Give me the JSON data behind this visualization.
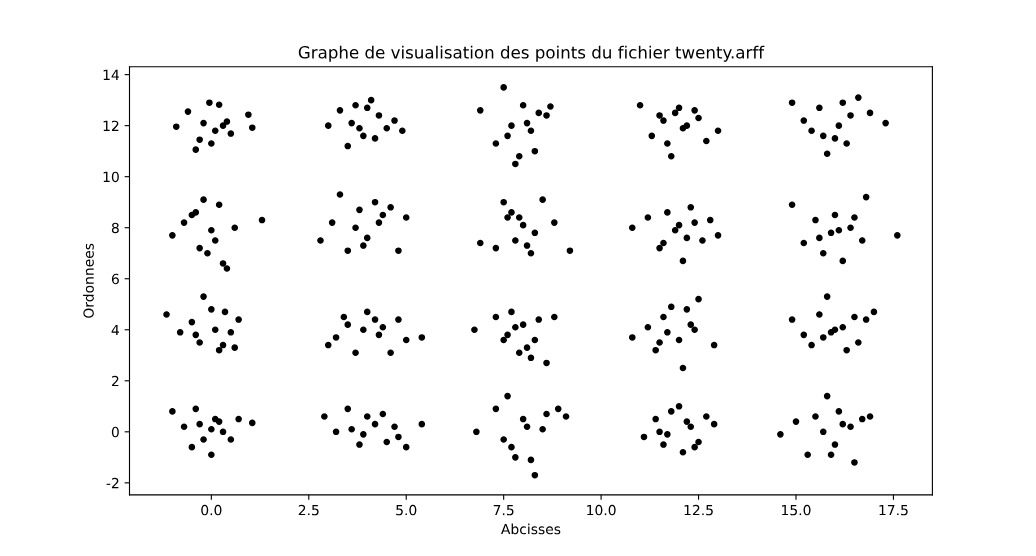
{
  "chart_data": {
    "type": "scatter",
    "title": "Graphe de visualisation des points du fichier twenty.arff",
    "xlabel": "Abcisses",
    "ylabel": "Ordonnees",
    "xlim": [
      -2.1,
      18.5
    ],
    "ylim": [
      -2.47,
      14.31
    ],
    "xticks": [
      {
        "value": 0,
        "label": "0.0"
      },
      {
        "value": 2.5,
        "label": "2.5"
      },
      {
        "value": 5,
        "label": "5.0"
      },
      {
        "value": 7.5,
        "label": "7.5"
      },
      {
        "value": 10,
        "label": "10.0"
      },
      {
        "value": 12.5,
        "label": "12.5"
      },
      {
        "value": 15,
        "label": "15.0"
      },
      {
        "value": 17.5,
        "label": "17.5"
      }
    ],
    "yticks": [
      -2,
      0,
      2,
      4,
      6,
      8,
      10,
      12,
      14
    ],
    "grid": false,
    "legend": false,
    "marker": "circle",
    "series": [
      {
        "color": "#000000",
        "x": [
          -1.0,
          -0.7,
          -0.4,
          -0.2,
          0.0,
          0.1,
          0.3,
          0.5,
          0.7,
          1.05,
          -0.5,
          0.2,
          0.0,
          -0.3,
          2.9,
          3.2,
          3.5,
          3.8,
          4.0,
          4.2,
          4.5,
          4.8,
          5.0,
          5.4,
          3.9,
          4.4,
          3.6,
          4.7,
          6.8,
          7.3,
          7.6,
          7.8,
          8.0,
          8.2,
          8.3,
          8.6,
          8.9,
          9.1,
          7.5,
          8.1,
          7.7,
          8.5,
          11.1,
          11.4,
          11.6,
          11.8,
          12.0,
          12.1,
          12.3,
          12.5,
          12.7,
          12.9,
          11.7,
          12.2,
          11.5,
          12.4,
          14.6,
          15.0,
          15.3,
          15.5,
          15.8,
          16.0,
          16.2,
          16.5,
          16.7,
          16.9,
          15.7,
          16.4,
          15.9,
          16.1,
          -1.15,
          -0.8,
          -0.5,
          -0.3,
          -0.2,
          0.0,
          0.2,
          0.35,
          0.5,
          0.7,
          -0.4,
          0.1,
          0.3,
          0.6,
          3.0,
          3.2,
          3.5,
          3.7,
          4.0,
          4.2,
          4.4,
          4.6,
          5.0,
          5.4,
          3.9,
          4.3,
          3.4,
          4.8,
          6.75,
          7.3,
          7.5,
          7.7,
          7.9,
          8.0,
          8.2,
          8.4,
          8.6,
          8.8,
          7.6,
          8.3,
          7.8,
          8.1,
          10.8,
          11.2,
          11.4,
          11.6,
          11.8,
          12.0,
          12.1,
          12.3,
          12.5,
          12.9,
          11.7,
          12.2,
          11.5,
          12.4,
          14.9,
          15.2,
          15.4,
          15.6,
          15.8,
          16.0,
          16.3,
          16.5,
          16.8,
          17.0,
          15.7,
          16.2,
          15.9,
          16.6,
          -1.0,
          -0.7,
          -0.4,
          -0.3,
          -0.2,
          0.0,
          0.2,
          0.4,
          0.6,
          1.3,
          -0.5,
          0.1,
          0.3,
          -0.1,
          2.8,
          3.1,
          3.3,
          3.5,
          3.8,
          4.0,
          4.2,
          4.4,
          4.8,
          5.0,
          3.7,
          4.6,
          3.9,
          4.3,
          6.9,
          7.3,
          7.5,
          7.6,
          7.8,
          8.0,
          8.2,
          8.5,
          8.8,
          9.2,
          7.7,
          8.3,
          8.1,
          7.9,
          10.8,
          11.2,
          11.5,
          11.7,
          12.0,
          12.1,
          12.3,
          12.6,
          12.8,
          13.0,
          11.9,
          12.4,
          11.6,
          12.2,
          14.9,
          15.2,
          15.5,
          15.7,
          15.9,
          16.0,
          16.2,
          16.5,
          16.8,
          17.6,
          15.6,
          16.4,
          16.1,
          16.7,
          -0.9,
          -0.6,
          -0.4,
          -0.2,
          -0.05,
          0.2,
          0.4,
          0.5,
          0.95,
          1.05,
          -0.3,
          0.1,
          0.3,
          0.0,
          3.0,
          3.3,
          3.5,
          3.7,
          3.9,
          4.1,
          4.3,
          4.5,
          4.7,
          4.9,
          3.6,
          4.2,
          4.0,
          3.8,
          6.9,
          7.3,
          7.5,
          7.7,
          7.8,
          8.0,
          8.2,
          8.3,
          8.6,
          8.7,
          7.6,
          8.1,
          7.9,
          8.4,
          11.0,
          11.3,
          11.5,
          11.7,
          11.8,
          12.0,
          12.2,
          12.4,
          12.7,
          13.0,
          11.6,
          12.1,
          11.9,
          12.5,
          14.9,
          15.2,
          15.4,
          15.6,
          15.8,
          16.0,
          16.2,
          16.4,
          16.6,
          16.9,
          17.3,
          15.7,
          16.1,
          16.3
        ],
        "values": [
          0.8,
          0.2,
          0.9,
          -0.3,
          -0.9,
          0.5,
          0.0,
          -0.3,
          0.5,
          0.35,
          -0.6,
          0.4,
          0.1,
          0.3,
          0.6,
          0.0,
          0.9,
          -0.5,
          0.6,
          0.3,
          -0.4,
          -0.2,
          -0.6,
          0.3,
          -0.1,
          0.7,
          0.1,
          0.2,
          0.0,
          0.9,
          1.4,
          -1.0,
          0.5,
          -1.1,
          -1.7,
          0.7,
          0.9,
          0.6,
          -0.3,
          0.2,
          -0.6,
          0.1,
          -0.2,
          0.5,
          -0.5,
          0.8,
          1.0,
          -0.8,
          0.2,
          -0.4,
          0.6,
          0.3,
          -0.1,
          0.4,
          0.0,
          -0.6,
          -0.1,
          0.4,
          -0.9,
          0.6,
          1.4,
          -0.5,
          0.3,
          -1.2,
          0.5,
          0.6,
          0.0,
          0.2,
          -0.9,
          0.8,
          4.6,
          3.9,
          4.3,
          3.5,
          5.3,
          4.8,
          3.2,
          4.7,
          3.9,
          4.4,
          3.8,
          4.0,
          3.4,
          3.3,
          3.4,
          3.7,
          4.2,
          3.1,
          4.7,
          4.4,
          4.1,
          3.1,
          3.6,
          3.7,
          4.0,
          3.8,
          4.5,
          4.4,
          4.0,
          4.5,
          3.6,
          4.7,
          3.1,
          4.2,
          2.9,
          4.4,
          2.7,
          4.5,
          3.8,
          3.6,
          4.1,
          3.3,
          3.7,
          4.1,
          3.2,
          4.5,
          4.9,
          3.6,
          2.5,
          4.2,
          5.2,
          3.4,
          3.9,
          4.8,
          3.5,
          4.0,
          4.4,
          3.8,
          3.4,
          4.6,
          5.3,
          4.0,
          3.2,
          4.5,
          4.4,
          4.7,
          3.7,
          4.1,
          3.9,
          3.5,
          7.7,
          8.2,
          8.6,
          7.2,
          9.1,
          7.9,
          8.9,
          6.4,
          8.0,
          8.3,
          8.5,
          7.5,
          6.6,
          7.0,
          7.5,
          8.2,
          9.3,
          7.1,
          8.7,
          7.6,
          9.0,
          8.5,
          7.1,
          8.4,
          8.0,
          8.8,
          7.3,
          8.2,
          7.4,
          7.2,
          9.0,
          8.4,
          7.5,
          8.1,
          7.0,
          9.1,
          8.2,
          7.1,
          8.6,
          7.8,
          7.3,
          8.4,
          8.0,
          8.4,
          7.2,
          8.6,
          8.1,
          6.7,
          8.8,
          7.5,
          8.3,
          7.7,
          7.9,
          8.2,
          7.4,
          7.6,
          8.9,
          7.4,
          8.3,
          7.0,
          7.8,
          8.5,
          6.7,
          8.4,
          9.2,
          7.7,
          7.6,
          8.0,
          7.9,
          7.5,
          11.96,
          12.55,
          11.06,
          12.1,
          12.9,
          12.82,
          12.16,
          11.69,
          12.43,
          11.92,
          11.45,
          11.8,
          12.0,
          11.3,
          12.0,
          12.6,
          11.2,
          12.8,
          11.6,
          13.0,
          12.4,
          11.9,
          12.2,
          11.8,
          12.1,
          11.5,
          12.7,
          11.9,
          12.6,
          11.3,
          13.5,
          12.0,
          10.5,
          12.8,
          11.8,
          11.0,
          12.4,
          12.75,
          11.6,
          12.1,
          10.8,
          12.5,
          12.8,
          11.6,
          12.4,
          11.3,
          10.8,
          12.7,
          12.0,
          12.6,
          11.4,
          11.8,
          12.2,
          11.9,
          12.5,
          12.3,
          12.9,
          12.2,
          11.8,
          12.7,
          10.9,
          11.5,
          12.9,
          12.4,
          13.1,
          12.5,
          12.1,
          11.6,
          12.0,
          11.3
        ]
      }
    ]
  }
}
